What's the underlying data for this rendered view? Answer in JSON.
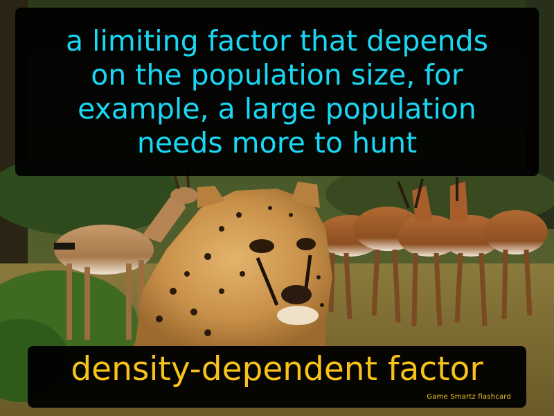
{
  "flashcard": {
    "definition_lines": [
      "a limiting factor that depends",
      "on the population size, for",
      "example, a large population",
      "needs more to hunt"
    ],
    "term": "density-dependent factor",
    "brand": "Game Smartz  flashcard"
  },
  "colors": {
    "definition_text": "#19d8f5",
    "term_text": "#f7c21a",
    "brand_text": "#f3c624",
    "panel_background": "#000000"
  }
}
